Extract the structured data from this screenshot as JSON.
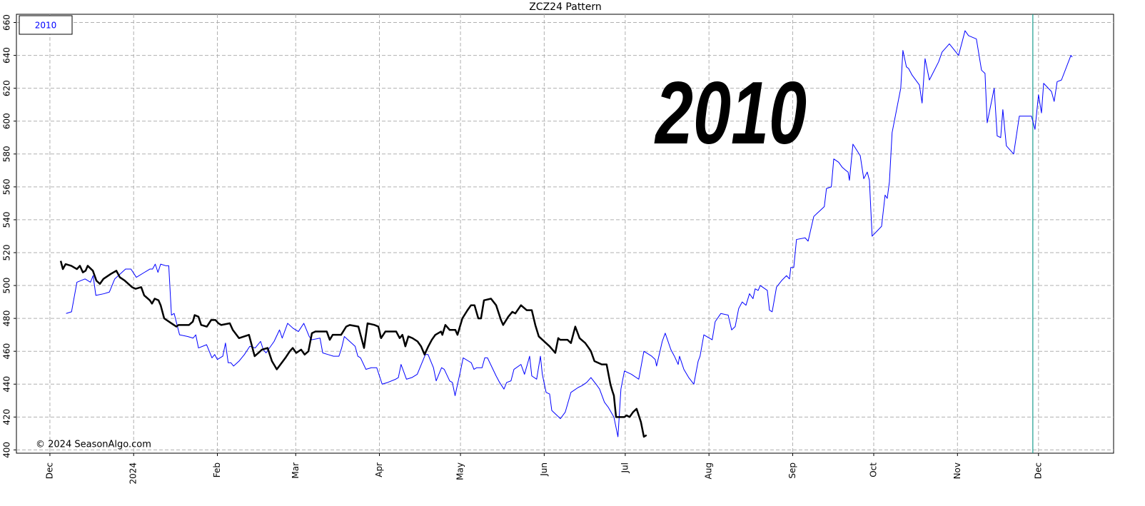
{
  "chart_data": {
    "type": "line",
    "title": "ZCZ24 Pattern",
    "watermark": "2010",
    "copyright": "© 2024 SeasonAlgo.com",
    "xlim": [
      -12.4,
      393.8
    ],
    "xticks": [
      {
        "value": 0,
        "label": "Dec"
      },
      {
        "value": 31,
        "label": "2024"
      },
      {
        "value": 62,
        "label": "Feb"
      },
      {
        "value": 91,
        "label": "Mar"
      },
      {
        "value": 122,
        "label": "Apr"
      },
      {
        "value": 152,
        "label": "May"
      },
      {
        "value": 183,
        "label": "Jun"
      },
      {
        "value": 213,
        "label": "Jul"
      },
      {
        "value": 244,
        "label": "Aug"
      },
      {
        "value": 275,
        "label": "Sep"
      },
      {
        "value": 305,
        "label": "Oct"
      },
      {
        "value": 336,
        "label": "Nov"
      },
      {
        "value": 366,
        "label": "Dec"
      }
    ],
    "ylim": [
      398,
      665
    ],
    "yticks": [
      400,
      420,
      440,
      460,
      480,
      500,
      520,
      540,
      560,
      580,
      600,
      620,
      640,
      660
    ],
    "grid": true,
    "legend": "upper left",
    "vline": {
      "x": 363.9,
      "color": "#1a9e8f"
    },
    "series": [
      {
        "name": "2010",
        "color": "#0000ff",
        "width": 1,
        "x": [
          6,
          8,
          10,
          13,
          15,
          16,
          17,
          20,
          22,
          24,
          26,
          28,
          30,
          32,
          35,
          37,
          38,
          39,
          40,
          41,
          43,
          44,
          45,
          46,
          48,
          51,
          53,
          54,
          55,
          58,
          59,
          60,
          61,
          62,
          64,
          65,
          66,
          67,
          68,
          70,
          72,
          74,
          76,
          78,
          79,
          80,
          83,
          85,
          86,
          88,
          90,
          92,
          94,
          96,
          97,
          100,
          101,
          103,
          105,
          107,
          108,
          109,
          111,
          113,
          114,
          115,
          117,
          119,
          121,
          123,
          125,
          128,
          129,
          130,
          132,
          134,
          136,
          138,
          139,
          140,
          142,
          143,
          145,
          146,
          148,
          149,
          150,
          152,
          153,
          155,
          156,
          157,
          158,
          160,
          161,
          162,
          165.2,
          166.5,
          168.1,
          169.1,
          170.7,
          171.8,
          174.4,
          175.7,
          177.1,
          177.6,
          178.4,
          180.2,
          181.6,
          182.3,
          183.7,
          185,
          185.8,
          189,
          190.8,
          192.9,
          195.6,
          196.9,
          198.7,
          200.3,
          202.2,
          203.5,
          205.3,
          206.7,
          208.8,
          210.3,
          211.4,
          212.7,
          215.3,
          218,
          219.9,
          222.8,
          224.1,
          224.6,
          226.7,
          227.8,
          229.9,
          231.2,
          232.6,
          233.1,
          234.7,
          236.5,
          238.4,
          240,
          240.7,
          242.1,
          243.1,
          245.2,
          246.3,
          248.4,
          251.1,
          252.4,
          253.7,
          255,
          256.3,
          257.7,
          259,
          260.3,
          261.1,
          262.2,
          263,
          265.6,
          266.4,
          267.4,
          269,
          270.9,
          272.7,
          273.8,
          274.3,
          275.4,
          276.4,
          279.6,
          280.7,
          282.8,
          285.4,
          286.7,
          287.5,
          289.3,
          290.2,
          292,
          293.3,
          294.7,
          295.5,
          296,
          297.3,
          300,
          301.3,
          302.6,
          303.4,
          304.4,
          307.9,
          309.2,
          310,
          310.8,
          311.8,
          315,
          315.8,
          317.1,
          317.9,
          319.2,
          321.9,
          322.9,
          324,
          325.6,
          329,
          330.3,
          333,
          336.4,
          337.7,
          338.8,
          340.1,
          343,
          344.9,
          346.2,
          347,
          349.6,
          350.7,
          352,
          352.8,
          354.1,
          356.8,
          358.9,
          363.4,
          364.7,
          366,
          367.1,
          367.9,
          370.8,
          371.8,
          372.9,
          374.5,
          378,
          378.5
        ],
        "values": [
          483,
          484,
          502,
          504,
          502,
          506,
          494,
          495,
          496,
          504,
          507,
          510,
          510,
          505,
          508,
          510,
          510,
          513,
          508,
          513,
          512,
          512,
          482,
          483,
          470,
          469,
          468,
          470,
          462,
          464,
          460,
          456,
          458,
          455,
          457,
          465,
          453,
          453,
          451,
          454,
          458,
          463,
          462,
          466,
          461,
          459,
          466,
          473,
          468,
          477,
          474,
          472,
          477,
          469,
          467,
          468,
          459,
          458,
          457,
          457,
          462,
          469,
          466,
          463,
          457,
          456,
          449,
          450,
          450,
          440,
          441,
          443,
          444,
          452,
          443,
          444,
          446,
          454,
          458,
          458,
          450,
          442,
          450,
          449,
          442,
          441,
          433,
          448,
          456,
          454,
          453,
          449,
          450,
          450,
          456,
          456,
          445,
          441,
          437,
          441,
          442,
          449,
          452,
          446,
          454,
          457,
          445,
          443,
          457,
          446,
          435,
          434,
          424,
          419,
          423,
          435,
          438,
          439,
          441,
          444,
          440,
          437,
          429,
          426,
          420,
          408,
          437,
          448,
          446,
          443,
          460,
          457,
          455,
          451,
          466,
          471,
          461,
          457,
          452,
          457,
          449,
          444,
          440,
          454,
          457,
          470,
          469,
          467,
          478,
          483,
          482,
          473,
          475,
          486,
          490,
          488,
          495,
          492,
          498,
          497,
          500,
          497,
          485,
          484,
          499,
          503,
          506,
          504,
          511,
          511,
          528,
          529,
          527,
          542,
          546,
          548,
          559,
          560,
          577,
          575,
          572,
          570,
          569,
          564,
          586,
          579,
          565,
          569,
          564,
          530,
          536,
          555,
          553,
          563,
          593,
          620,
          643,
          633,
          632,
          628,
          622,
          611,
          638,
          625,
          636,
          642,
          647,
          640,
          648,
          655,
          652,
          650,
          631,
          629,
          599,
          620,
          591,
          590,
          607,
          585,
          580,
          603,
          603,
          595,
          616,
          605,
          623,
          618,
          612,
          624,
          625,
          640,
          639
        ]
      },
      {
        "color": "#000000",
        "width": 2.5,
        "x": [
          4.0,
          4.8,
          5.8,
          7.9,
          10.0,
          11.1,
          12.2,
          13.2,
          14.0,
          15.9,
          17.2,
          18.5,
          19.8,
          22.5,
          24.6,
          25.9,
          27.7,
          30.4,
          31.7,
          33.8,
          34.9,
          37.0,
          37.8,
          38.8,
          40.2,
          41.0,
          42.3,
          45.0,
          46.8,
          47.6,
          51.5,
          52.9,
          53.6,
          55.0,
          56.0,
          58.1,
          59.7,
          61.3,
          62.4,
          63.4,
          66.6,
          67.7,
          70.0,
          73.7,
          75.8,
          77.2,
          78.5,
          80.6,
          82.2,
          84.0,
          87.2,
          88.8,
          89.9,
          91.2,
          93.0,
          94.3,
          95.7,
          97.0,
          98.3,
          102.5,
          103.6,
          104.7,
          107.8,
          109.7,
          111.0,
          114.2,
          116.3,
          117.6,
          120.2,
          121.6,
          122.6,
          124.2,
          128.2,
          129.5,
          130.5,
          131.6,
          132.7,
          134.2,
          136.1,
          137.4,
          138.7,
          140.1,
          141.4,
          142.7,
          144.8,
          145.3,
          146.4,
          148.0,
          150.1,
          150.9,
          152.7,
          154.6,
          155.9,
          157.2,
          158.6,
          159.6,
          160.7,
          163.3,
          165.2,
          167.0,
          167.8,
          169.7,
          171.2,
          172.3,
          174.4,
          176.5,
          178.4,
          179.7,
          181.0,
          185.0,
          187.1,
          188.2,
          188.9,
          191.6,
          192.9,
          194.5,
          196.1,
          198.2,
          199.5,
          200.3,
          201.6,
          204.3,
          206.1,
          207.5,
          208.2,
          208.8,
          209.6,
          212.7,
          213.5,
          214.6,
          215.9,
          217.2,
          218.8,
          219.9,
          220.9
        ],
        "values": [
          515,
          510,
          513,
          512,
          510,
          512,
          508,
          509,
          512,
          509,
          503,
          501,
          504,
          507,
          509,
          505,
          503,
          499,
          498,
          499,
          494,
          491,
          489,
          492,
          491,
          488,
          480,
          477,
          475,
          476,
          476,
          478,
          482,
          481,
          476,
          475,
          479,
          479,
          477,
          476,
          477,
          473,
          468,
          470,
          457,
          459,
          461,
          462,
          454,
          449,
          456,
          460,
          462,
          459,
          461,
          458,
          460,
          471,
          472,
          472,
          467,
          470,
          470,
          475,
          476,
          475,
          462,
          477,
          476,
          475,
          468,
          472,
          472,
          468,
          470,
          463,
          469,
          468,
          466,
          463,
          458,
          463,
          467,
          470,
          472,
          470,
          476,
          473,
          473,
          470,
          480,
          485,
          488,
          488,
          480,
          480,
          491,
          492,
          488,
          479,
          476,
          481,
          484,
          483,
          488,
          485,
          485,
          476,
          469,
          463,
          459,
          468,
          467,
          467,
          465,
          475,
          468,
          465,
          462,
          460,
          454,
          452,
          452,
          440,
          436,
          433,
          420,
          420,
          421,
          420,
          423,
          425,
          417,
          408,
          409
        ]
      }
    ]
  }
}
